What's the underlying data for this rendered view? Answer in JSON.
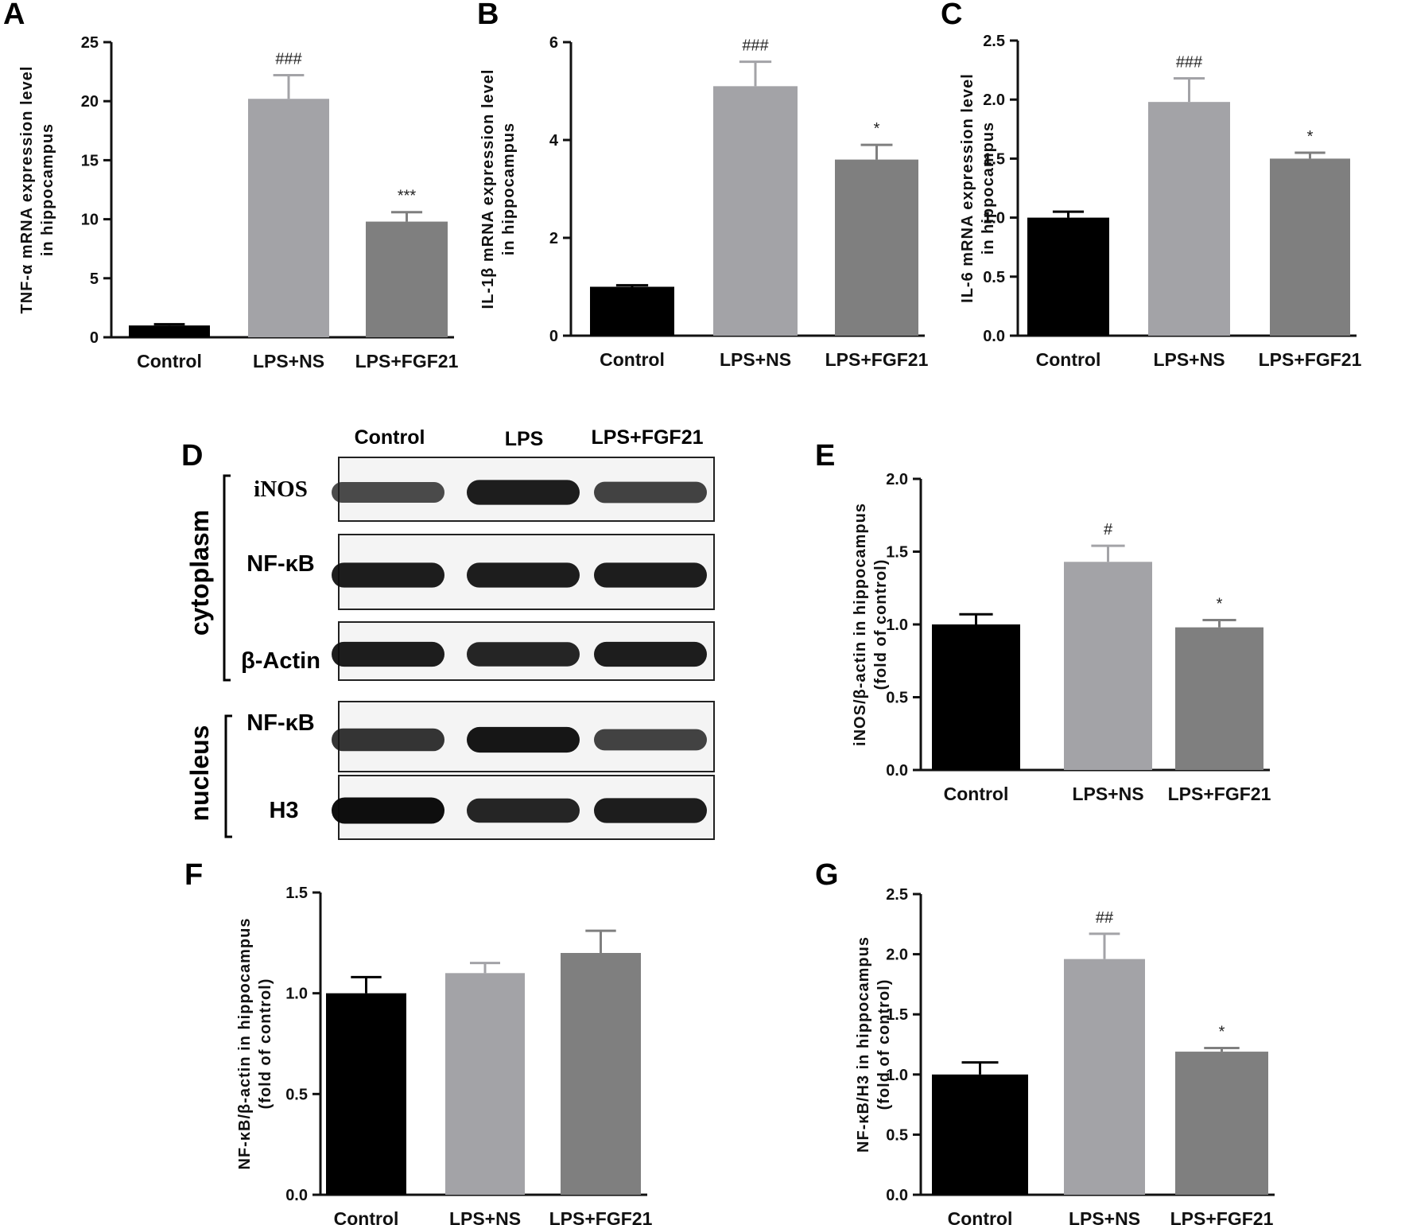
{
  "colors": {
    "control": "#000000",
    "lps_ns": "#a3a3a7",
    "lps_fgf21": "#7f7f7f",
    "axis": "#111111"
  },
  "chart_data": [
    {
      "panel": "A",
      "type": "bar",
      "categories": [
        "Control",
        "LPS+NS",
        "LPS+FGF21"
      ],
      "values": [
        1.0,
        20.2,
        9.8
      ],
      "errors": [
        0.1,
        2.0,
        0.8
      ],
      "significance": [
        "",
        "###",
        "***"
      ],
      "ylabel_lines": [
        "TNF-α mRNA expression level",
        "in hippocampus"
      ],
      "ylim": [
        0,
        25
      ],
      "yticks": [
        "0",
        "5",
        "10",
        "15",
        "20",
        "25"
      ]
    },
    {
      "panel": "B",
      "type": "bar",
      "categories": [
        "Control",
        "LPS+NS",
        "LPS+FGF21"
      ],
      "values": [
        1.0,
        5.1,
        3.6
      ],
      "errors": [
        0.03,
        0.5,
        0.3
      ],
      "significance": [
        "",
        "###",
        "*"
      ],
      "ylabel_lines": [
        "IL-1β mRNA expression level",
        "in hippocampus"
      ],
      "ylim": [
        0,
        6
      ],
      "yticks": [
        "0",
        "2",
        "4",
        "6"
      ]
    },
    {
      "panel": "C",
      "type": "bar",
      "categories": [
        "Control",
        "LPS+NS",
        "LPS+FGF21"
      ],
      "values": [
        1.0,
        1.98,
        1.5
      ],
      "errors": [
        0.05,
        0.2,
        0.05
      ],
      "significance": [
        "",
        "###",
        "*"
      ],
      "ylabel_lines": [
        "IL-6 mRNA expression level",
        "in hippocampus"
      ],
      "ylim": [
        0,
        2.5
      ],
      "yticks": [
        "0.0",
        "0.5",
        "1.0",
        "1.5",
        "2.0",
        "2.5"
      ]
    },
    {
      "panel": "E",
      "type": "bar",
      "categories": [
        "Control",
        "LPS+NS",
        "LPS+FGF21"
      ],
      "values": [
        1.0,
        1.43,
        0.98
      ],
      "errors": [
        0.07,
        0.11,
        0.05
      ],
      "significance": [
        "",
        "#",
        "*"
      ],
      "ylabel_lines": [
        "iNOS/β-actin in hippocampus",
        "(fold of control)"
      ],
      "ylim": [
        0,
        2.0
      ],
      "yticks": [
        "0.0",
        "0.5",
        "1.0",
        "1.5",
        "2.0"
      ]
    },
    {
      "panel": "F",
      "type": "bar",
      "categories": [
        "Control",
        "LPS+NS",
        "LPS+FGF21"
      ],
      "values": [
        1.0,
        1.1,
        1.2
      ],
      "errors": [
        0.08,
        0.05,
        0.11
      ],
      "significance": [
        "",
        "",
        ""
      ],
      "ylabel_lines": [
        "NF-κB/β-actin in hippocampus",
        "(fold of control)"
      ],
      "ylim": [
        0,
        1.5
      ],
      "yticks": [
        "0.0",
        "0.5",
        "1.0",
        "1.5"
      ]
    },
    {
      "panel": "G",
      "type": "bar",
      "categories": [
        "Control",
        "LPS+NS",
        "LPS+FGF21"
      ],
      "values": [
        1.0,
        1.96,
        1.19
      ],
      "errors": [
        0.1,
        0.21,
        0.03
      ],
      "significance": [
        "",
        "##",
        "*"
      ],
      "ylabel_lines": [
        "NF-κB/H3 in hippocampus",
        "(fold of control)"
      ],
      "ylim": [
        0,
        2.5
      ],
      "yticks": [
        "0.0",
        "0.5",
        "1.0",
        "1.5",
        "2.0",
        "2.5"
      ]
    }
  ],
  "blot": {
    "panel": "D",
    "lanes": [
      "Control",
      "LPS",
      "LPS+FGF21"
    ],
    "groups": {
      "cytoplasm": "cytoplasm",
      "nucleus": "nucleus"
    },
    "rows": [
      {
        "label": "iNOS",
        "bands": [
          0.55,
          0.85,
          0.6
        ]
      },
      {
        "label": "NF-κB",
        "bands": [
          0.85,
          0.85,
          0.85
        ]
      },
      {
        "label": "β-Actin",
        "bands": [
          0.85,
          0.8,
          0.85
        ]
      },
      {
        "label": "NF-κB",
        "bands": [
          0.7,
          0.9,
          0.6
        ]
      },
      {
        "label": "H3",
        "bands": [
          0.95,
          0.8,
          0.85
        ]
      }
    ]
  }
}
